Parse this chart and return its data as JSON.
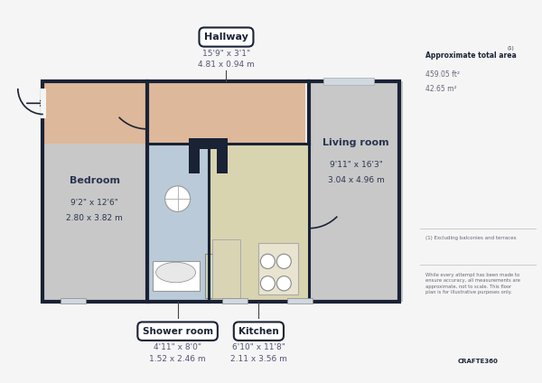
{
  "bg_color": "#f5f5f5",
  "wall_color": "#1a2235",
  "bedroom_color": "#cccccc",
  "hallway_color": "#deb99a",
  "shower_color": "#bccfde",
  "kitchen_color": "#ddd8b8",
  "living_color": "#cccccc",
  "side_text": {
    "title": "Approximate total area",
    "sup": "(1)",
    "val1": "459.05 ft²",
    "val2": "42.65 m²",
    "note1": "(1) Excluding balconies and terraces",
    "note2": "While every attempt has been made to\nensure accuracy, all measurements are\napproximate, not to scale. This floor\nplan is for illustrative purposes only.",
    "brand": "CRAFTE360"
  }
}
